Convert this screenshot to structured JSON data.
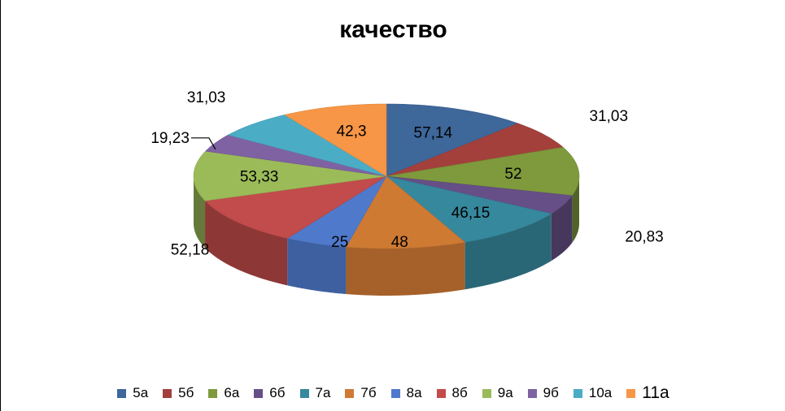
{
  "chart_data": {
    "type": "pie",
    "title": "качество",
    "categories": [
      "5а",
      "5б",
      "6а",
      "6б",
      "7а",
      "7б",
      "8а",
      "8б",
      "9а",
      "9б",
      "10а",
      "11а"
    ],
    "values": [
      57.14,
      31.03,
      52,
      20.83,
      46.15,
      48,
      25,
      52.18,
      53.33,
      19.23,
      31.03,
      42.3
    ],
    "value_labels": [
      "57,14",
      "31,03",
      "52",
      "20,83",
      "46,15",
      "48",
      "25",
      "52,18",
      "53,33",
      "19,23",
      "31,03",
      "42,3"
    ],
    "colors": [
      "#3E679A",
      "#A3403C",
      "#7E9A3C",
      "#664F86",
      "#36889D",
      "#CE7A33",
      "#4F7ACB",
      "#C24B4B",
      "#9BBB59",
      "#7F62A2",
      "#4BACC6",
      "#F79646"
    ],
    "legend_position": "bottom",
    "style": "3d"
  }
}
